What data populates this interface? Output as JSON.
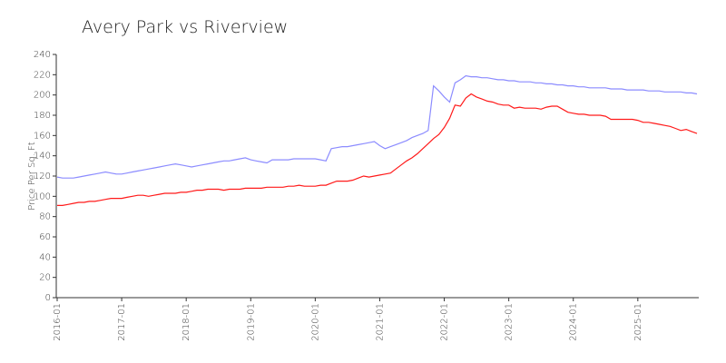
{
  "chart_data": {
    "type": "line",
    "title": "Avery Park vs Riverview",
    "ylabel": "Price Per Sq. Ft",
    "x": [
      "2016-01",
      "2016-02",
      "2016-03",
      "2016-04",
      "2016-05",
      "2016-06",
      "2016-07",
      "2016-08",
      "2016-09",
      "2016-10",
      "2016-11",
      "2016-12",
      "2017-01",
      "2017-02",
      "2017-03",
      "2017-04",
      "2017-05",
      "2017-06",
      "2017-07",
      "2017-08",
      "2017-09",
      "2017-10",
      "2017-11",
      "2017-12",
      "2018-01",
      "2018-02",
      "2018-03",
      "2018-04",
      "2018-05",
      "2018-06",
      "2018-07",
      "2018-08",
      "2018-09",
      "2018-10",
      "2018-11",
      "2018-12",
      "2019-01",
      "2019-02",
      "2019-03",
      "2019-04",
      "2019-05",
      "2019-06",
      "2019-07",
      "2019-08",
      "2019-09",
      "2019-10",
      "2019-11",
      "2019-12",
      "2020-01",
      "2020-02",
      "2020-03",
      "2020-04",
      "2020-05",
      "2020-06",
      "2020-07",
      "2020-08",
      "2020-09",
      "2020-10",
      "2020-11",
      "2020-12",
      "2021-01",
      "2021-02",
      "2021-03",
      "2021-04",
      "2021-05",
      "2021-06",
      "2021-07",
      "2021-08",
      "2021-09",
      "2021-10",
      "2021-11",
      "2021-12",
      "2022-01",
      "2022-02",
      "2022-03",
      "2022-04",
      "2022-05",
      "2022-06",
      "2022-07",
      "2022-08",
      "2022-09",
      "2022-10",
      "2022-11",
      "2022-12",
      "2023-01",
      "2023-02",
      "2023-03",
      "2023-04",
      "2023-05",
      "2023-06",
      "2023-07",
      "2023-08",
      "2023-09",
      "2023-10",
      "2023-11",
      "2023-12",
      "2024-01",
      "2024-02",
      "2024-03",
      "2024-04",
      "2024-05",
      "2024-06",
      "2024-07",
      "2024-08",
      "2024-09",
      "2024-10",
      "2024-11",
      "2024-12",
      "2025-01",
      "2025-02",
      "2025-03",
      "2025-04",
      "2025-05",
      "2025-06",
      "2025-07",
      "2025-08",
      "2025-09",
      "2025-10",
      "2025-11",
      "2025-12"
    ],
    "series": [
      {
        "color": "#8c8cff",
        "values": [
          119,
          118,
          118,
          118,
          119,
          120,
          121,
          122,
          123,
          124,
          123,
          122,
          122,
          123,
          124,
          125,
          126,
          127,
          128,
          129,
          130,
          131,
          132,
          131,
          130,
          129,
          130,
          131,
          132,
          133,
          134,
          135,
          135,
          136,
          137,
          138,
          136,
          135,
          134,
          133,
          136,
          136,
          136,
          136,
          137,
          137,
          137,
          137,
          137,
          136,
          135,
          147,
          148,
          149,
          149,
          150,
          151,
          152,
          153,
          154,
          150,
          147,
          149,
          151,
          153,
          155,
          158,
          160,
          162,
          165,
          209,
          204,
          198,
          193,
          212,
          215,
          219,
          218,
          218,
          217,
          217,
          216,
          215,
          215,
          214,
          214,
          213,
          213,
          213,
          212,
          212,
          211,
          211,
          210,
          210,
          209,
          209,
          208,
          208,
          207,
          207,
          207,
          207,
          206,
          206,
          206,
          205,
          205,
          205,
          205,
          204,
          204,
          204,
          203,
          203,
          203,
          203,
          202,
          202,
          201
        ]
      },
      {
        "color": "#ff1a1a",
        "values": [
          91,
          91,
          92,
          93,
          94,
          94,
          95,
          95,
          96,
          97,
          98,
          98,
          98,
          99,
          100,
          101,
          101,
          100,
          101,
          102,
          103,
          103,
          103,
          104,
          104,
          105,
          106,
          106,
          107,
          107,
          107,
          106,
          107,
          107,
          107,
          108,
          108,
          108,
          108,
          109,
          109,
          109,
          109,
          110,
          110,
          111,
          110,
          110,
          110,
          111,
          111,
          113,
          115,
          115,
          115,
          116,
          118,
          120,
          119,
          120,
          121,
          122,
          123,
          127,
          131,
          135,
          138,
          142,
          147,
          152,
          157,
          161,
          168,
          177,
          190,
          189,
          197,
          201,
          198,
          196,
          194,
          193,
          191,
          190,
          190,
          187,
          188,
          187,
          187,
          187,
          186,
          188,
          189,
          189,
          186,
          183,
          182,
          181,
          181,
          180,
          180,
          180,
          179,
          176,
          176,
          176,
          176,
          176,
          175,
          173,
          173,
          172,
          171,
          170,
          169,
          167,
          165,
          166,
          164,
          162
        ]
      }
    ],
    "xticks": [
      "2016-01",
      "2017-01",
      "2018-01",
      "2019-01",
      "2020-01",
      "2021-01",
      "2022-01",
      "2023-01",
      "2024-01",
      "2025-01"
    ],
    "ylim": [
      0,
      240
    ],
    "yticks": [
      0,
      20,
      40,
      60,
      80,
      100,
      120,
      140,
      160,
      180,
      200,
      220,
      240
    ],
    "grid": false
  }
}
